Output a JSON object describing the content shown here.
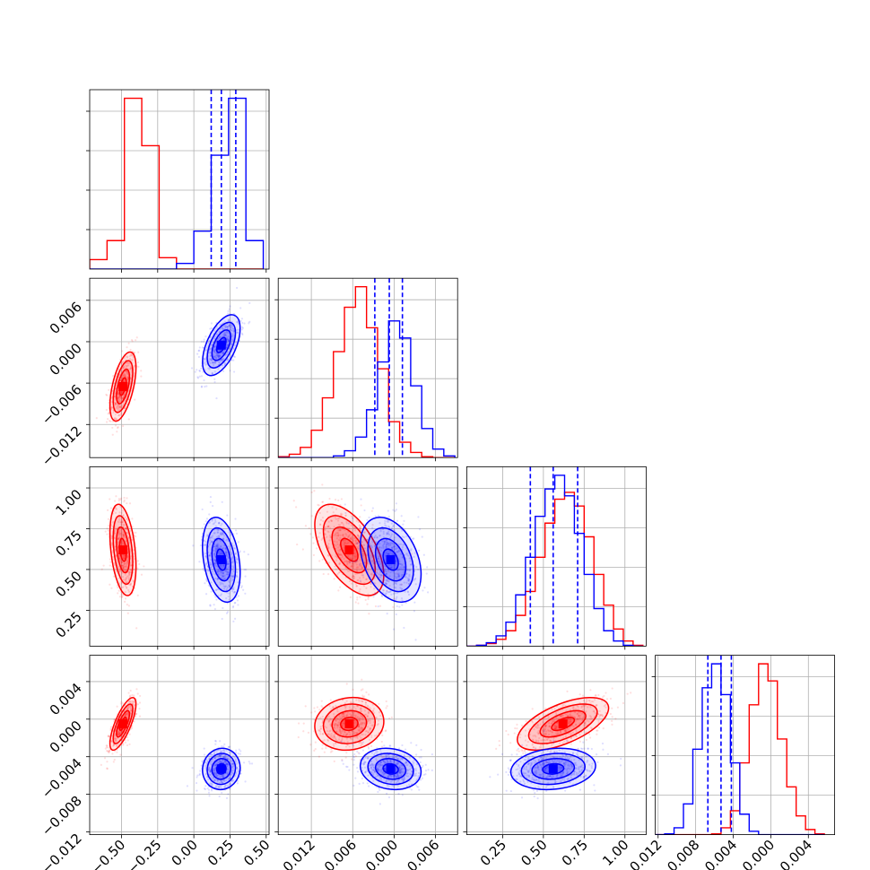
{
  "colors": {
    "red": "#ff0000",
    "blue": "#0000ff",
    "grid": "#b0b0b0",
    "frame": "#000000"
  },
  "chart_data": {
    "type": "corner",
    "grid": true,
    "n_params": 4,
    "series": [
      {
        "color": "red",
        "means": [
          -0.49,
          -0.0065,
          0.62,
          -0.0005
        ],
        "sds": [
          0.045,
          0.0025,
          0.14,
          0.0014
        ],
        "correlations": {
          "1-0": 0.55,
          "2-0": -0.35,
          "3-0": 0.75,
          "2-1": -0.55,
          "3-1": 0.1,
          "3-2": 0.6
        }
      },
      {
        "color": "blue",
        "means": [
          0.19,
          -0.0005,
          0.56,
          -0.0053
        ],
        "sds": [
          0.065,
          0.0022,
          0.13,
          0.0011
        ],
        "correlations": {
          "1-0": 0.55,
          "2-0": -0.3,
          "3-0": 0.05,
          "2-1": -0.35,
          "3-1": -0.15,
          "3-2": 0.15
        }
      }
    ],
    "quantile_lines": {
      "color": "blue",
      "values": [
        [
          0.12,
          0.19,
          0.29
        ],
        [
          -0.0028,
          -0.0007,
          0.0012
        ],
        [
          0.42,
          0.56,
          0.71
        ],
        [
          -0.0067,
          -0.0053,
          -0.0042
        ]
      ]
    },
    "axes": [
      {
        "range": [
          -0.72,
          0.52
        ],
        "ticks": [
          -0.5,
          -0.25,
          0.0,
          0.25,
          0.5
        ],
        "tick_labels": [
          "−0.50",
          "−0.25",
          "0.00",
          "0.25",
          "0.50"
        ]
      },
      {
        "range": [
          -0.0168,
          0.0092
        ],
        "ticks": [
          -0.012,
          -0.006,
          0.0,
          0.006
        ],
        "tick_labels": [
          "−0.012",
          "−0.006",
          "0.000",
          "0.006"
        ]
      },
      {
        "range": [
          0.03,
          1.13
        ],
        "ticks": [
          0.25,
          0.5,
          0.75,
          1.0
        ],
        "tick_labels": [
          "0.25",
          "0.50",
          "0.75",
          "1.00"
        ]
      },
      {
        "range": [
          -0.0123,
          0.0068
        ],
        "ticks": [
          -0.012,
          -0.008,
          -0.004,
          0.0,
          0.004
        ],
        "tick_labels": [
          "−0.012",
          "−0.008",
          "−0.004",
          "0.000",
          "0.004"
        ]
      }
    ],
    "histograms": [
      {
        "bin_edges": [
          -0.72,
          -0.6,
          -0.48,
          -0.36,
          -0.24,
          -0.12,
          0.0,
          0.12,
          0.24,
          0.36,
          0.48
        ],
        "red": [
          50,
          150,
          900,
          650,
          60,
          0,
          0,
          0,
          0,
          0
        ],
        "blue": [
          0,
          0,
          0,
          0,
          0,
          30,
          200,
          600,
          900,
          150
        ]
      },
      {
        "bin_edges": [
          -0.0168,
          -0.0152,
          -0.0136,
          -0.012,
          -0.0104,
          -0.0088,
          -0.0072,
          -0.0056,
          -0.004,
          -0.0024,
          -0.0008,
          0.0008,
          0.0024,
          0.004,
          0.0056,
          0.0072,
          0.0088
        ],
        "red": [
          5,
          20,
          60,
          160,
          350,
          620,
          880,
          1000,
          760,
          520,
          210,
          90,
          30,
          5,
          0,
          0
        ],
        "blue": [
          0,
          0,
          0,
          0,
          0,
          10,
          40,
          120,
          280,
          560,
          800,
          700,
          420,
          170,
          50,
          10
        ]
      },
      {
        "bin_edges": [
          0.03,
          0.09,
          0.15,
          0.21,
          0.27,
          0.33,
          0.39,
          0.45,
          0.51,
          0.57,
          0.63,
          0.69,
          0.75,
          0.81,
          0.87,
          0.93,
          0.99,
          1.05,
          1.11
        ],
        "red": [
          0,
          5,
          15,
          40,
          90,
          180,
          320,
          520,
          720,
          860,
          900,
          820,
          640,
          420,
          240,
          100,
          30,
          5
        ],
        "blue": [
          0,
          5,
          20,
          60,
          140,
          300,
          520,
          760,
          920,
          1000,
          880,
          660,
          420,
          220,
          90,
          30,
          5,
          0
        ]
      },
      {
        "bin_edges": [
          -0.0123,
          -0.0113,
          -0.0103,
          -0.0093,
          -0.0083,
          -0.0073,
          -0.0063,
          -0.0053,
          -0.0043,
          -0.0033,
          -0.0023,
          -0.0013,
          -0.0003,
          0.0007,
          0.0017,
          0.0027,
          0.0037,
          0.0047,
          0.0057
        ],
        "red": [
          0,
          0,
          0,
          0,
          0,
          0,
          5,
          40,
          140,
          420,
          760,
          1000,
          900,
          560,
          280,
          110,
          30,
          5
        ],
        "blue": [
          0,
          5,
          40,
          180,
          500,
          860,
          1000,
          820,
          420,
          120,
          20,
          0,
          0,
          0,
          0,
          0,
          0,
          0
        ]
      }
    ]
  }
}
